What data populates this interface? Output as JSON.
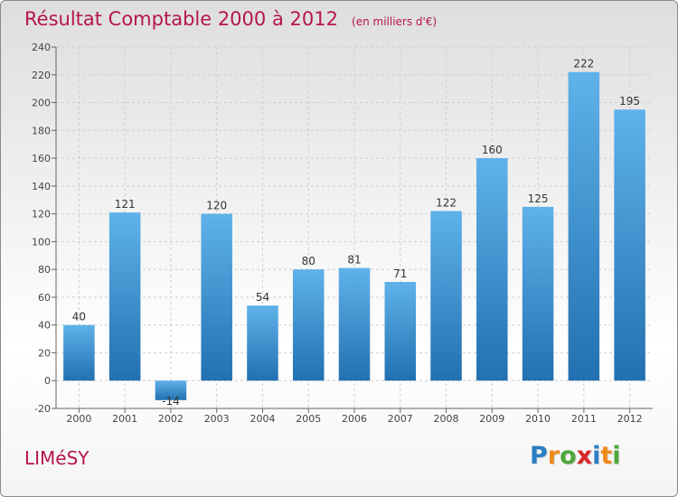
{
  "title": "Résultat Comptable 2000 à 2012",
  "subtitle": "(en milliers d'€)",
  "town": "LIMéSY",
  "brand": {
    "letters": [
      "P",
      "r",
      "o",
      "x",
      "i",
      "t",
      "i"
    ],
    "colors": [
      "#2b7fc4",
      "#f08a1c",
      "#4aa83a",
      "#d8262b",
      "#2b7fc4",
      "#f08a1c",
      "#4aa83a"
    ]
  },
  "chart_data": {
    "type": "bar",
    "title": "Résultat Comptable 2000 à 2012",
    "ylabel": "",
    "xlabel": "",
    "categories": [
      "2000",
      "2001",
      "2002",
      "2003",
      "2004",
      "2005",
      "2006",
      "2007",
      "2008",
      "2009",
      "2010",
      "2011",
      "2012"
    ],
    "values": [
      40,
      121,
      -14,
      120,
      54,
      80,
      81,
      71,
      122,
      160,
      125,
      222,
      195
    ],
    "labels": [
      "40",
      "121",
      "-14",
      "120",
      "54",
      "80",
      "81",
      "71",
      "122",
      "160",
      "125",
      "222",
      "195"
    ],
    "ylim": [
      -20,
      240
    ],
    "yticks": [
      -20,
      0,
      20,
      40,
      60,
      80,
      100,
      120,
      140,
      160,
      180,
      200,
      220,
      240
    ],
    "grid": true,
    "colors": {
      "bar_top": "#5fb2ea",
      "bar_bottom": "#2270b0",
      "grid": "#cfcfcf",
      "axis": "#666666"
    }
  }
}
